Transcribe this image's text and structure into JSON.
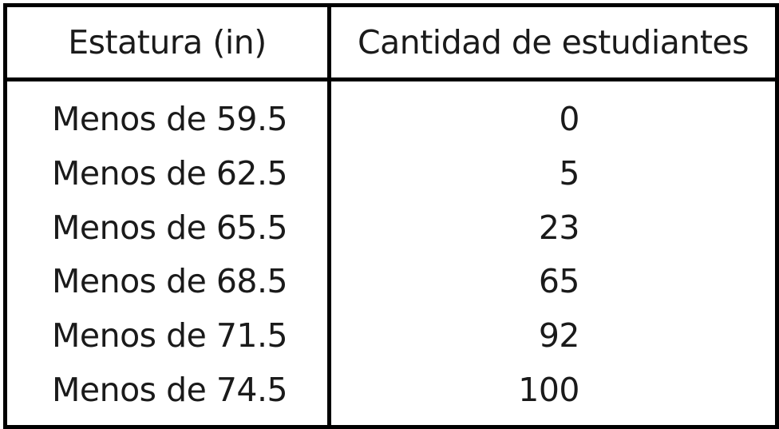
{
  "chart_data": {
    "type": "table",
    "columns": [
      "Estatura (in)",
      "Cantidad de estudiantes"
    ],
    "rows": [
      {
        "label": "Menos de 59.5",
        "value": "0"
      },
      {
        "label": "Menos de 62.5",
        "value": "5"
      },
      {
        "label": "Menos de 65.5",
        "value": "23"
      },
      {
        "label": "Menos de 68.5",
        "value": "65"
      },
      {
        "label": "Menos de 71.5",
        "value": "92"
      },
      {
        "label": "Menos de 74.5",
        "value": "100"
      }
    ]
  }
}
